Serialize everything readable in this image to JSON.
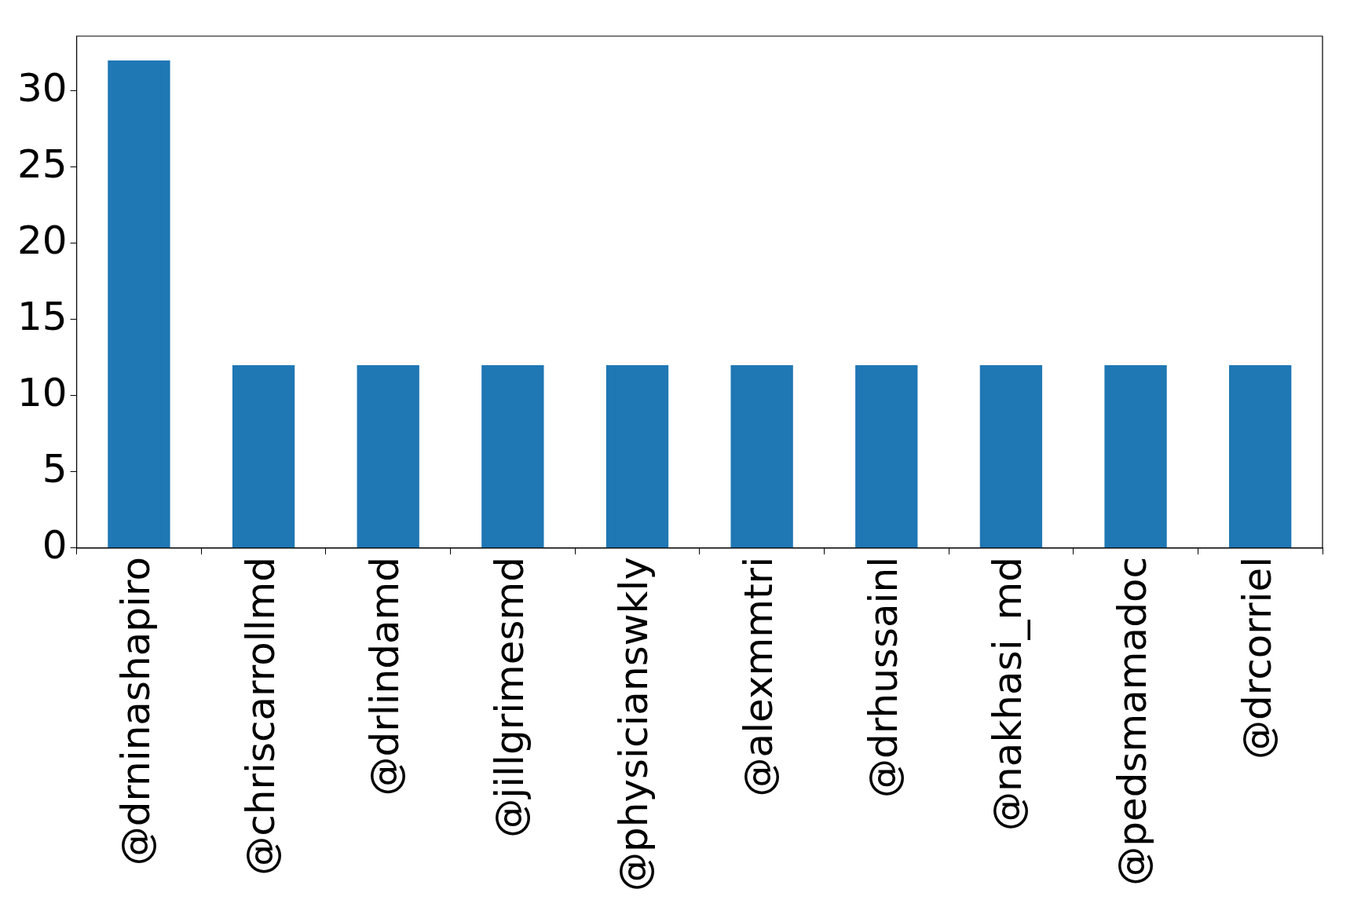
{
  "chart_data": {
    "type": "bar",
    "categories": [
      "@drninashapiro",
      "@chriscarrollmd",
      "@drlindamd",
      "@jillgrimesmd",
      "@physicianswkly",
      "@alexmmtri",
      "@drhussainl",
      "@nakhasi_md",
      "@pedsmamadoc",
      "@drcorriel"
    ],
    "values": [
      32,
      12,
      12,
      12,
      12,
      12,
      12,
      12,
      12,
      12
    ],
    "color": "#1f77b4",
    "ylim": [
      0,
      33.6
    ],
    "yticks": [
      0,
      5,
      10,
      15,
      20,
      25,
      30
    ],
    "grid": false
  }
}
